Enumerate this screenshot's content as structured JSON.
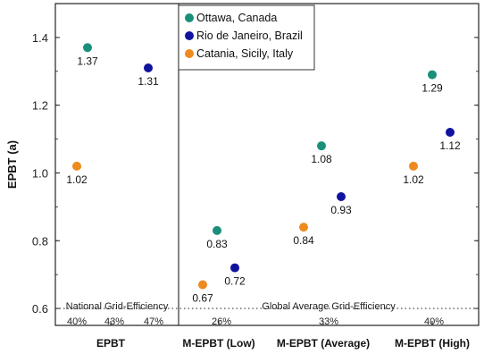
{
  "chart_data": {
    "type": "scatter",
    "ylabel": "EPBT (a)",
    "ylim": [
      0.55,
      1.5
    ],
    "yticks": [
      0.6,
      0.8,
      1.0,
      1.2,
      1.4
    ],
    "ytick_labels": [
      "0.6",
      "0.8",
      "1.0",
      "1.2",
      "1.4"
    ],
    "categories": [
      "EPBT",
      "M-EPBT (Low)",
      "M-EPBT (Average)",
      "M-EPBT (High)"
    ],
    "grid": false,
    "legend_position": "top-center",
    "series": [
      {
        "name": "Ottawa, Canada",
        "color": "#1a8f7a",
        "values": [
          1.37,
          0.83,
          1.08,
          1.29
        ],
        "labels": [
          "1.37",
          "0.83",
          "1.08",
          "1.29"
        ]
      },
      {
        "name": "Rio de Janeiro, Brazil",
        "color": "#10139e",
        "values": [
          1.31,
          0.72,
          0.93,
          1.12
        ],
        "labels": [
          "1.31",
          "0.72",
          "0.93",
          "1.12"
        ]
      },
      {
        "name": "Catania, Sicily, Italy",
        "color": "#ee8a1e",
        "values": [
          1.02,
          0.67,
          0.84,
          1.02
        ],
        "labels": [
          "1.02",
          "0.67",
          "0.84",
          "1.02"
        ]
      }
    ],
    "reference_line": {
      "y": 0.6,
      "style": "dotted"
    },
    "annotations": {
      "left_region": "National Grid-Efficiency",
      "right_region": "Global Average Grid-Efficiency",
      "efficiency_values": [
        "40%",
        "43%",
        "47%",
        "26%",
        "33%",
        "40%"
      ]
    }
  }
}
